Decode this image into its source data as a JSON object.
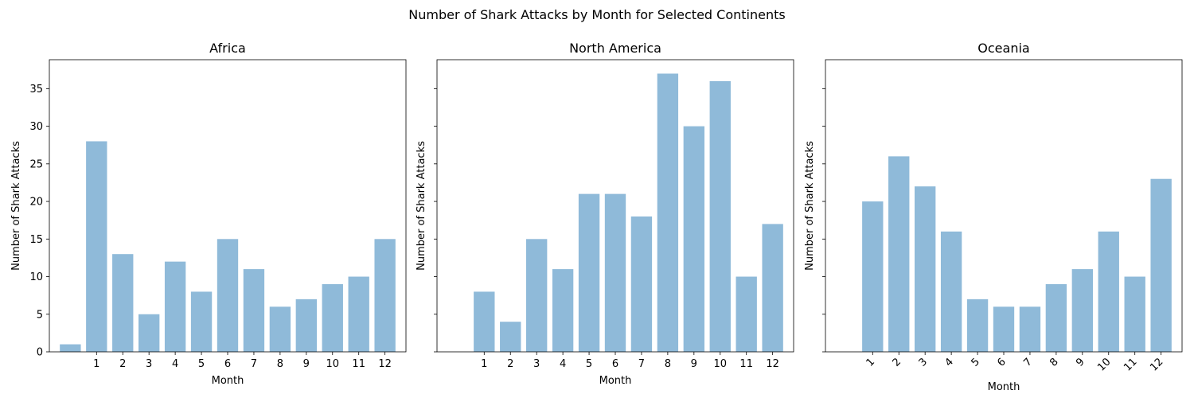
{
  "figure": {
    "title": "Number of Shark Attacks by Month for Selected Continents",
    "bar_color": "#8fbad9",
    "axis_color": "#000000"
  },
  "chart_data": [
    {
      "type": "bar",
      "title": "Africa",
      "xlabel": "Month",
      "ylabel": "Number of Shark Attacks",
      "categories": [
        "",
        "1",
        "2",
        "3",
        "4",
        "5",
        "6",
        "7",
        "8",
        "9",
        "10",
        "11",
        "12"
      ],
      "values": [
        1,
        28,
        13,
        5,
        12,
        8,
        15,
        11,
        6,
        7,
        9,
        10,
        15
      ],
      "ylim": [
        0,
        38.85
      ],
      "yticks": [
        0,
        5,
        10,
        15,
        20,
        25,
        30,
        35
      ],
      "show_ytick_labels": true,
      "xtick_rotation": 0,
      "grid": false
    },
    {
      "type": "bar",
      "title": "North America",
      "xlabel": "Month",
      "ylabel": "Number of Shark Attacks",
      "categories": [
        "",
        "1",
        "2",
        "3",
        "4",
        "5",
        "6",
        "7",
        "8",
        "9",
        "10",
        "11",
        "12"
      ],
      "values": [
        0,
        8,
        4,
        15,
        11,
        21,
        21,
        18,
        37,
        30,
        36,
        10,
        17
      ],
      "ylim": [
        0,
        38.85
      ],
      "yticks": [
        0,
        5,
        10,
        15,
        20,
        25,
        30,
        35
      ],
      "show_ytick_labels": false,
      "xtick_rotation": 0,
      "grid": false
    },
    {
      "type": "bar",
      "title": "Oceania",
      "xlabel": "Month",
      "ylabel": "Number of Shark Attacks",
      "categories": [
        "",
        "1",
        "2",
        "3",
        "4",
        "5",
        "6",
        "7",
        "8",
        "9",
        "10",
        "11",
        "12"
      ],
      "values": [
        0,
        20,
        26,
        22,
        16,
        7,
        6,
        6,
        9,
        11,
        16,
        10,
        23
      ],
      "ylim": [
        0,
        38.85
      ],
      "yticks": [
        0,
        5,
        10,
        15,
        20,
        25,
        30,
        35
      ],
      "show_ytick_labels": false,
      "xtick_rotation": 45,
      "grid": false
    }
  ]
}
